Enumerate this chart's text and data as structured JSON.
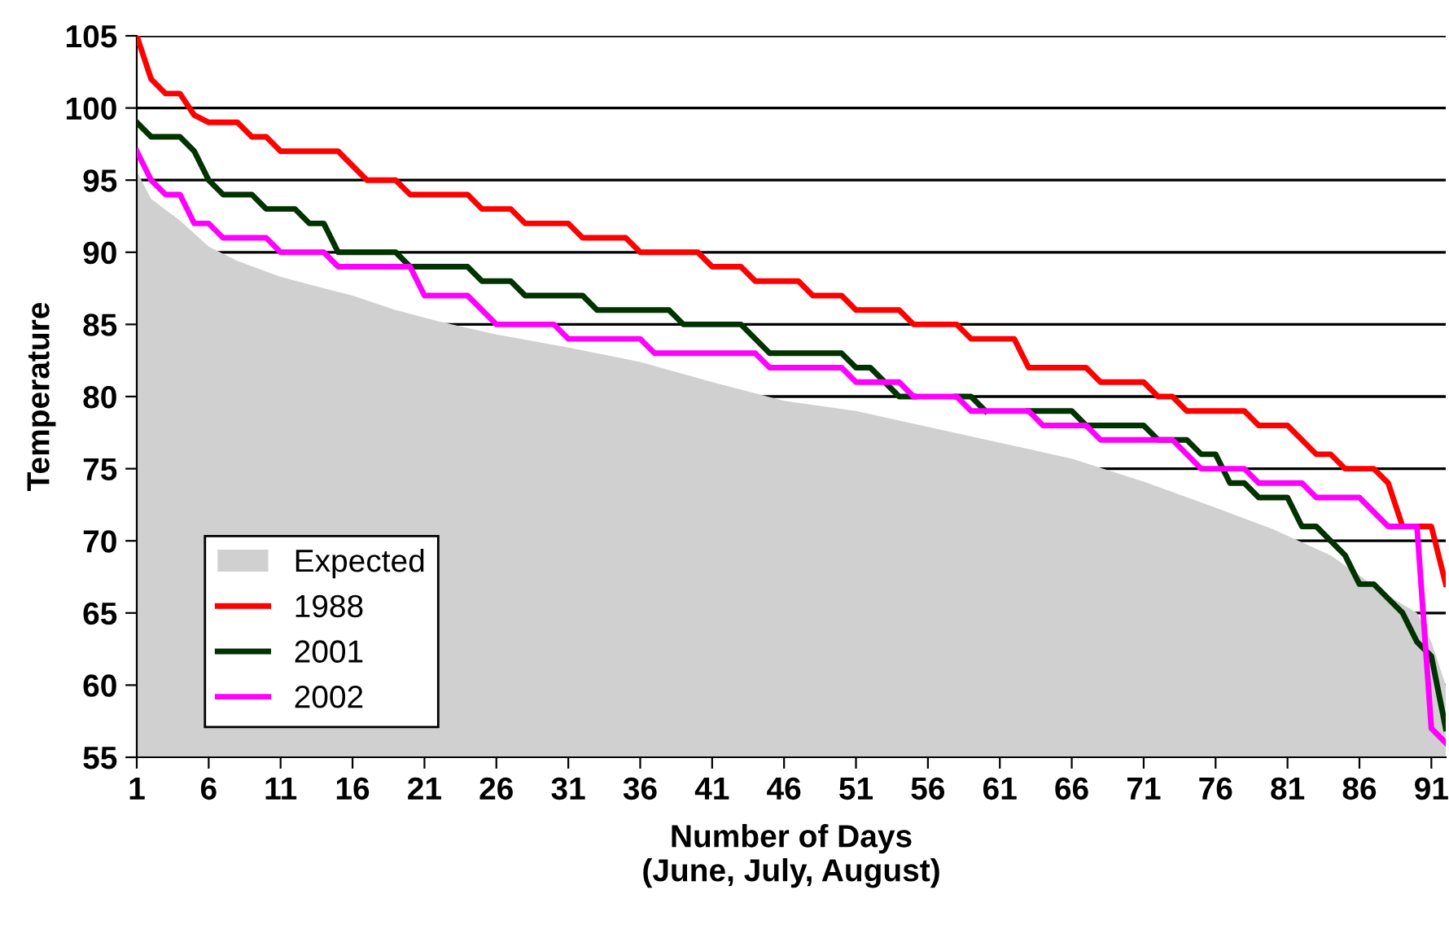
{
  "chart_data": {
    "type": "line",
    "xlabel": "Number of Days\n(June, July, August)",
    "ylabel": "Temperature",
    "xlim": [
      1,
      92
    ],
    "xticks": [
      1,
      6,
      11,
      16,
      21,
      26,
      31,
      36,
      41,
      46,
      51,
      56,
      61,
      66,
      71,
      76,
      81,
      86,
      91
    ],
    "ylim": [
      55,
      105
    ],
    "yticks": [
      55,
      60,
      65,
      70,
      75,
      80,
      85,
      90,
      95,
      100,
      105
    ],
    "grid": "y",
    "legend": "bottom left",
    "series": [
      {
        "name": "Expected",
        "type": "area",
        "color": "#d0d0d0",
        "x": [
          1,
          2,
          4,
          6,
          8,
          11,
          14,
          16,
          19,
          22,
          26,
          31,
          36,
          41,
          46,
          51,
          56,
          61,
          66,
          71,
          76,
          80,
          84,
          88,
          90,
          91,
          92
        ],
        "values": [
          95.6,
          93.7,
          92.2,
          90.4,
          89.4,
          88.3,
          87.5,
          87,
          86,
          85.2,
          84.3,
          83.4,
          82.4,
          81,
          79.7,
          79,
          77.9,
          76.8,
          75.7,
          74.1,
          72.3,
          70.8,
          69,
          66.2,
          65,
          63,
          60
        ]
      },
      {
        "name": "1988",
        "color": "#ff0000",
        "x": [
          1,
          2,
          3,
          4,
          5,
          6,
          7,
          8,
          9,
          10,
          11,
          12,
          13,
          14,
          15,
          16,
          17,
          18,
          19,
          20,
          21,
          22,
          23,
          24,
          25,
          26,
          27,
          28,
          29,
          30,
          31,
          32,
          33,
          34,
          35,
          36,
          37,
          38,
          39,
          40,
          41,
          42,
          43,
          44,
          45,
          46,
          47,
          48,
          49,
          50,
          51,
          52,
          53,
          54,
          55,
          56,
          57,
          58,
          59,
          60,
          61,
          62,
          63,
          64,
          65,
          66,
          67,
          68,
          69,
          70,
          71,
          72,
          73,
          74,
          75,
          76,
          77,
          78,
          79,
          80,
          81,
          82,
          83,
          84,
          85,
          86,
          87,
          88,
          89,
          90,
          91,
          92
        ],
        "values": [
          105,
          102,
          101,
          101,
          99.5,
          99,
          99,
          99,
          98,
          98,
          97,
          97,
          97,
          97,
          97,
          96,
          95,
          95,
          95,
          94,
          94,
          94,
          94,
          94,
          93,
          93,
          93,
          92,
          92,
          92,
          92,
          91,
          91,
          91,
          91,
          90,
          90,
          90,
          90,
          90,
          89,
          89,
          89,
          88,
          88,
          88,
          88,
          87,
          87,
          87,
          86,
          86,
          86,
          86,
          85,
          85,
          85,
          85,
          84,
          84,
          84,
          84,
          82,
          82,
          82,
          82,
          82,
          81,
          81,
          81,
          81,
          80,
          80,
          79,
          79,
          79,
          79,
          79,
          78,
          78,
          78,
          77,
          76,
          76,
          75,
          75,
          75,
          74,
          71,
          71,
          71,
          67
        ]
      },
      {
        "name": "2001",
        "color": "#003300",
        "x": [
          1,
          2,
          3,
          4,
          5,
          6,
          7,
          8,
          9,
          10,
          11,
          12,
          13,
          14,
          15,
          16,
          17,
          18,
          19,
          20,
          21,
          22,
          23,
          24,
          25,
          26,
          27,
          28,
          29,
          30,
          31,
          32,
          33,
          34,
          35,
          36,
          37,
          38,
          39,
          40,
          41,
          42,
          43,
          44,
          45,
          46,
          47,
          48,
          49,
          50,
          51,
          52,
          53,
          54,
          55,
          56,
          57,
          58,
          59,
          60,
          61,
          62,
          63,
          64,
          65,
          66,
          67,
          68,
          69,
          70,
          71,
          72,
          73,
          74,
          75,
          76,
          77,
          78,
          79,
          80,
          81,
          82,
          83,
          84,
          85,
          86,
          87,
          88,
          89,
          90,
          91,
          92
        ],
        "values": [
          99,
          98,
          98,
          98,
          97,
          95,
          94,
          94,
          94,
          93,
          93,
          93,
          92,
          92,
          90,
          90,
          90,
          90,
          90,
          89,
          89,
          89,
          89,
          89,
          88,
          88,
          88,
          87,
          87,
          87,
          87,
          87,
          86,
          86,
          86,
          86,
          86,
          86,
          85,
          85,
          85,
          85,
          85,
          84,
          83,
          83,
          83,
          83,
          83,
          83,
          82,
          82,
          81,
          80,
          80,
          null,
          null,
          80,
          80,
          79,
          null,
          null,
          79,
          79,
          79,
          79,
          78,
          78,
          78,
          78,
          78,
          77,
          77,
          77,
          76,
          76,
          74,
          74,
          73,
          73,
          73,
          71,
          71,
          70,
          69,
          67,
          67,
          66,
          65,
          63,
          62,
          57
        ]
      },
      {
        "name": "2002",
        "color": "#ff00ff",
        "x": [
          1,
          2,
          3,
          4,
          5,
          6,
          7,
          8,
          9,
          10,
          11,
          12,
          13,
          14,
          15,
          16,
          17,
          18,
          19,
          20,
          21,
          22,
          23,
          24,
          25,
          26,
          27,
          28,
          29,
          30,
          31,
          32,
          33,
          34,
          35,
          36,
          37,
          38,
          39,
          40,
          41,
          42,
          43,
          44,
          45,
          46,
          47,
          48,
          49,
          50,
          51,
          52,
          53,
          54,
          55,
          56,
          57,
          58,
          59,
          60,
          61,
          62,
          63,
          64,
          65,
          66,
          67,
          68,
          69,
          70,
          71,
          72,
          73,
          74,
          75,
          76,
          77,
          78,
          79,
          80,
          81,
          82,
          83,
          84,
          85,
          86,
          87,
          88,
          89,
          90,
          91,
          92
        ],
        "values": [
          97,
          95,
          94,
          94,
          92,
          92,
          91,
          91,
          91,
          91,
          90,
          90,
          90,
          90,
          89,
          89,
          89,
          89,
          89,
          89,
          87,
          87,
          87,
          87,
          86,
          85,
          85,
          85,
          85,
          85,
          84,
          84,
          84,
          84,
          84,
          84,
          83,
          83,
          83,
          83,
          83,
          83,
          83,
          83,
          82,
          82,
          82,
          82,
          82,
          82,
          81,
          81,
          81,
          81,
          80,
          80,
          80,
          80,
          79,
          79,
          79,
          79,
          79,
          78,
          78,
          78,
          78,
          77,
          77,
          77,
          77,
          77,
          77,
          76,
          75,
          75,
          75,
          75,
          74,
          74,
          74,
          74,
          73,
          73,
          73,
          73,
          72,
          71,
          71,
          71,
          57,
          56
        ]
      }
    ]
  }
}
